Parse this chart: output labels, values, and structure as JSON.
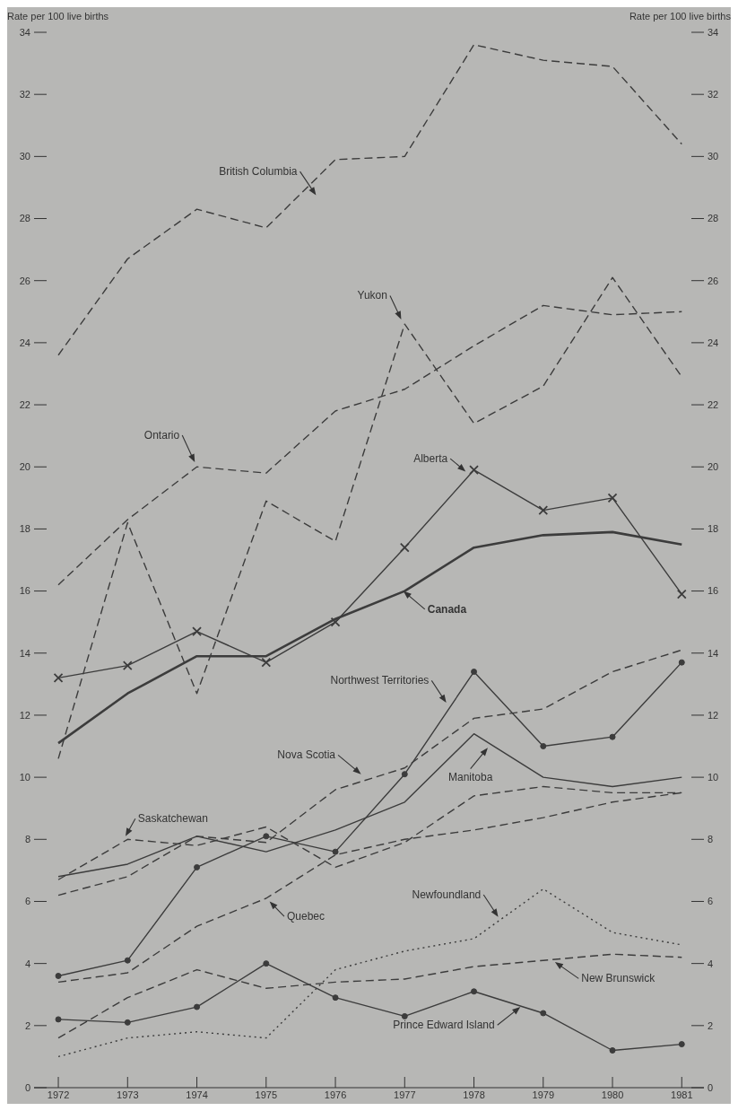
{
  "chart_data": {
    "type": "line",
    "ylabel": "Rate per 100 live births",
    "y2label": "Rate per 100 live births",
    "x": [
      1972,
      1973,
      1974,
      1975,
      1976,
      1977,
      1978,
      1979,
      1980,
      1981
    ],
    "xlim": [
      1971.65,
      1981.32
    ],
    "xticks": [
      1972,
      1973,
      1974,
      1975,
      1976,
      1977,
      1978,
      1979,
      1980,
      1981
    ],
    "ylim": [
      0,
      34
    ],
    "yticks": [
      0,
      2,
      4,
      6,
      8,
      10,
      12,
      14,
      16,
      18,
      20,
      22,
      24,
      26,
      28,
      30,
      32,
      34
    ],
    "y2lim": [
      0,
      34
    ],
    "y2ticks": [
      0,
      2,
      4,
      6,
      8,
      10,
      12,
      14,
      16,
      18,
      20,
      22,
      24,
      26,
      28,
      30,
      32,
      34
    ],
    "grid": false,
    "series": [
      {
        "name": "British Columbia",
        "color": "#3c3c3c",
        "line_style": "dashed",
        "marker": "none",
        "values": [
          23.6,
          26.7,
          28.3,
          27.7,
          29.9,
          30.0,
          33.6,
          33.1,
          32.9,
          30.4
        ]
      },
      {
        "name": "Yukon",
        "color": "#3c3c3c",
        "line_style": "dashed",
        "marker": "none",
        "values": [
          10.6,
          18.2,
          12.7,
          18.9,
          17.6,
          24.6,
          21.4,
          22.6,
          26.1,
          22.9
        ]
      },
      {
        "name": "Ontario",
        "color": "#3c3c3c",
        "line_style": "dashed",
        "marker": "none",
        "values": [
          16.2,
          18.3,
          20.0,
          19.8,
          21.8,
          22.5,
          23.9,
          25.2,
          24.9,
          25.0
        ]
      },
      {
        "name": "Alberta",
        "color": "#3c3c3c",
        "line_style": "solid",
        "marker": "cross",
        "values": [
          13.2,
          13.6,
          14.7,
          13.7,
          15.0,
          17.4,
          19.9,
          18.6,
          19.0,
          15.9
        ]
      },
      {
        "name": "Canada",
        "color": "#3c3c3c",
        "line_style": "solid",
        "marker": "none",
        "values": [
          11.1,
          12.7,
          13.9,
          13.9,
          15.1,
          16.0,
          17.4,
          17.8,
          17.9,
          17.5
        ]
      },
      {
        "name": "Northwest Territories",
        "color": "#3c3c3c",
        "line_style": "solid",
        "marker": "circle",
        "values": [
          3.6,
          4.1,
          7.1,
          8.1,
          7.6,
          10.1,
          13.4,
          11.0,
          11.3,
          13.7
        ]
      },
      {
        "name": "Nova Scotia",
        "color": "#3c3c3c",
        "line_style": "dashed",
        "marker": "none",
        "values": [
          6.2,
          6.8,
          8.1,
          7.9,
          9.6,
          10.3,
          11.9,
          12.2,
          13.4,
          14.1
        ]
      },
      {
        "name": "Manitoba",
        "color": "#3c3c3c",
        "line_style": "solid",
        "marker": "none",
        "values": [
          6.8,
          7.2,
          8.1,
          7.6,
          8.3,
          9.2,
          11.4,
          10.0,
          9.7,
          10.0
        ]
      },
      {
        "name": "Saskatchewan",
        "color": "#3c3c3c",
        "line_style": "dashed",
        "marker": "none",
        "values": [
          6.7,
          8.0,
          7.8,
          8.4,
          7.1,
          7.9,
          9.4,
          9.7,
          9.5,
          9.5
        ]
      },
      {
        "name": "Quebec",
        "color": "#3c3c3c",
        "line_style": "dashed",
        "marker": "none",
        "values": [
          3.4,
          3.7,
          5.2,
          6.1,
          7.5,
          8.0,
          8.3,
          8.7,
          9.2,
          9.5
        ]
      },
      {
        "name": "Newfoundland",
        "color": "#3c3c3c",
        "line_style": "dotted",
        "marker": "none",
        "values": [
          1.0,
          1.6,
          1.8,
          1.6,
          3.8,
          4.4,
          4.8,
          6.4,
          5.0,
          4.6
        ]
      },
      {
        "name": "New Brunswick",
        "color": "#3c3c3c",
        "line_style": "dashed",
        "marker": "none",
        "values": [
          1.6,
          2.9,
          3.8,
          3.2,
          3.4,
          3.5,
          3.9,
          4.1,
          4.3,
          4.2
        ]
      },
      {
        "name": "Prince Edward Island",
        "color": "#3c3c3c",
        "line_style": "solid",
        "marker": "circle",
        "values": [
          2.2,
          2.1,
          2.6,
          4.0,
          2.9,
          2.3,
          3.1,
          2.4,
          1.2,
          1.4
        ]
      }
    ]
  }
}
